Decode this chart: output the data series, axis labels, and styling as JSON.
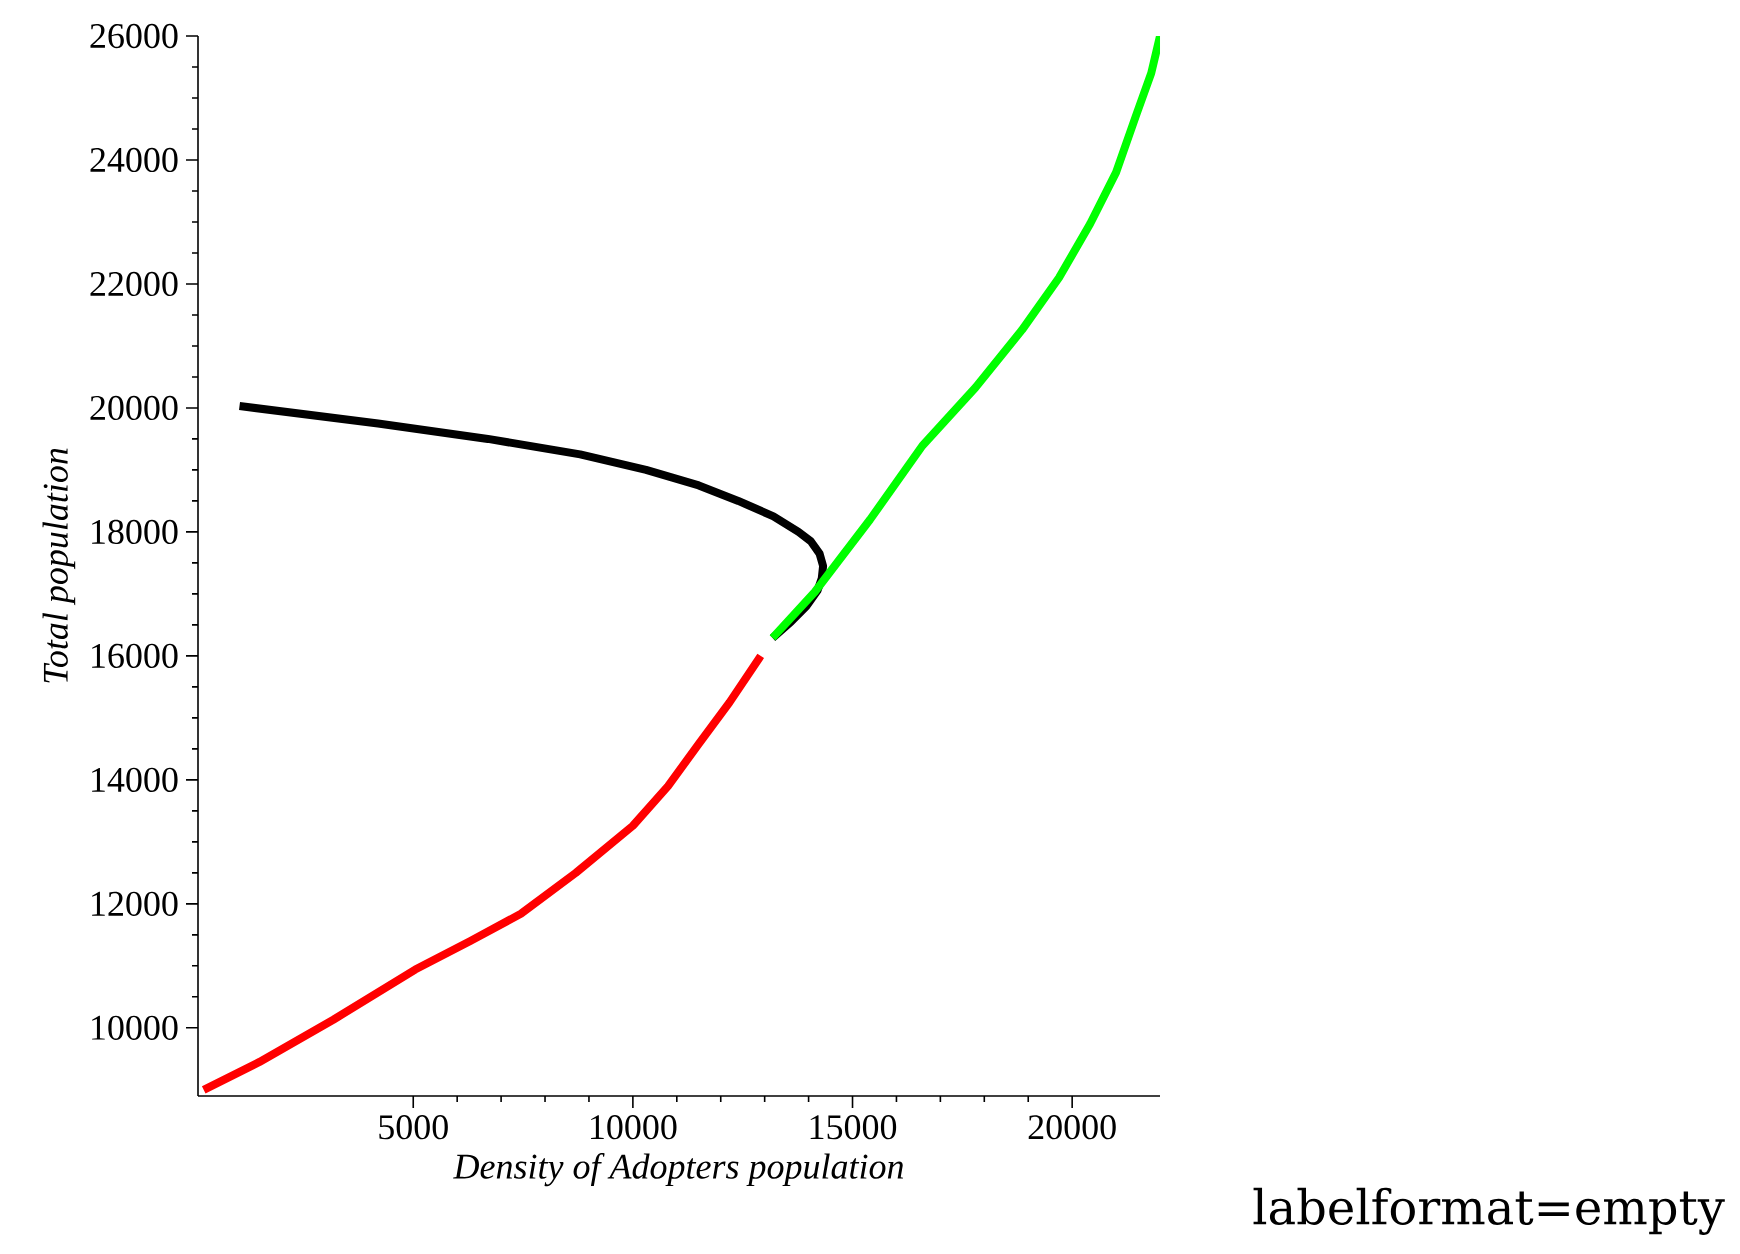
{
  "chart_data": {
    "type": "line",
    "xlabel": "Density of Adopters population",
    "ylabel": "Total population",
    "annotations": [
      "labelformat=empty"
    ],
    "xlim": [
      100,
      22000
    ],
    "ylim": [
      8900,
      26000
    ],
    "xticks": [
      5000,
      10000,
      15000,
      20000
    ],
    "yticks": [
      10000,
      12000,
      14000,
      16000,
      18000,
      20000,
      22000,
      24000,
      26000
    ],
    "marker": "none",
    "line_style": "solid",
    "series": [
      {
        "color": "#000000",
        "x": [
          1045,
          4200,
          6700,
          8800,
          10300,
          11500,
          12400,
          13200,
          13770,
          14050,
          14250,
          14330,
          14300,
          14200,
          13950,
          13600,
          13180
        ],
        "values": [
          20030,
          19750,
          19500,
          19250,
          19000,
          18750,
          18500,
          18250,
          18000,
          17850,
          17650,
          17450,
          17250,
          17050,
          16800,
          16550,
          16290
        ]
      },
      {
        "color": "#ff0000",
        "x": [
          230,
          1500,
          3180,
          5045,
          6300,
          7450,
          8700,
          10000,
          10800,
          11500,
          12200,
          12910
        ],
        "values": [
          9000,
          9450,
          10130,
          10940,
          11400,
          11840,
          12500,
          13260,
          13900,
          14580,
          15250,
          16000
        ]
      },
      {
        "color": "#00ff00",
        "x": [
          13180,
          14140,
          15400,
          16590,
          17800,
          18860,
          19700,
          20410,
          21000,
          21450,
          21800,
          22000
        ],
        "values": [
          16290,
          17030,
          18200,
          19390,
          20330,
          21260,
          22100,
          22970,
          23800,
          24710,
          25400,
          26000
        ]
      }
    ]
  }
}
